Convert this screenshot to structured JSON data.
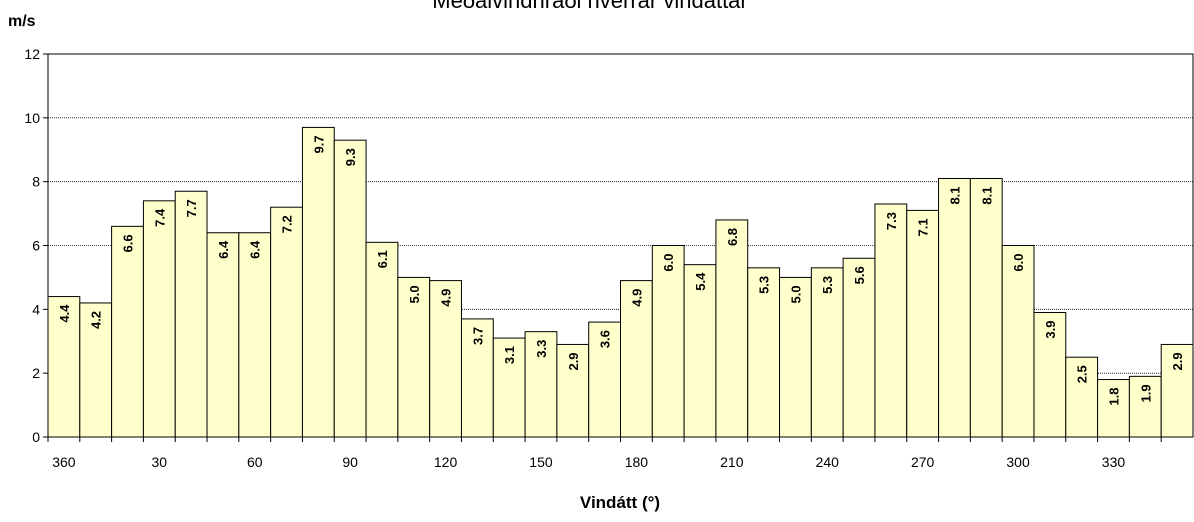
{
  "chart_data": {
    "type": "bar",
    "title": "Meðalvindhraði hverrar vindáttar",
    "y_label": "m/s",
    "x_label": "Vindátt (°)",
    "categories": [
      "360",
      null,
      null,
      "30",
      null,
      null,
      "60",
      null,
      null,
      "90",
      null,
      null,
      "120",
      null,
      null,
      "150",
      null,
      null,
      "180",
      null,
      null,
      "210",
      null,
      null,
      "240",
      null,
      null,
      "270",
      null,
      null,
      "300",
      null,
      null,
      "330",
      null,
      null
    ],
    "values": [
      4.4,
      4.2,
      6.6,
      7.4,
      7.7,
      6.4,
      6.4,
      7.2,
      9.7,
      9.3,
      6.1,
      5.0,
      4.9,
      3.7,
      3.1,
      3.3,
      2.9,
      3.6,
      4.9,
      6.0,
      5.4,
      6.8,
      5.3,
      5.0,
      5.3,
      5.6,
      7.3,
      7.1,
      8.1,
      8.1,
      6.0,
      3.9,
      2.5,
      1.8,
      1.9,
      2.9
    ],
    "value_labels": [
      "4.4",
      "4.2",
      "6.6",
      "7.4",
      "7.7",
      "6.4",
      "6.4",
      "7.2",
      "9.7",
      "9.3",
      "6.1",
      "5.0",
      "4.9",
      "3.7",
      "3.1",
      "3.3",
      "2.9",
      "3.6",
      "4.9",
      "6.0",
      "5.4",
      "6.8",
      "5.3",
      "5.0",
      "5.3",
      "5.6",
      "7.3",
      "7.1",
      "8.1",
      "8.1",
      "6.0",
      "3.9",
      "2.5",
      "1.8",
      "1.9",
      "2.9"
    ],
    "color": "#ffffcc",
    "ylim": [
      0,
      12
    ],
    "yticks": [
      0,
      2,
      4,
      6,
      8,
      10,
      12
    ],
    "grid": true
  }
}
